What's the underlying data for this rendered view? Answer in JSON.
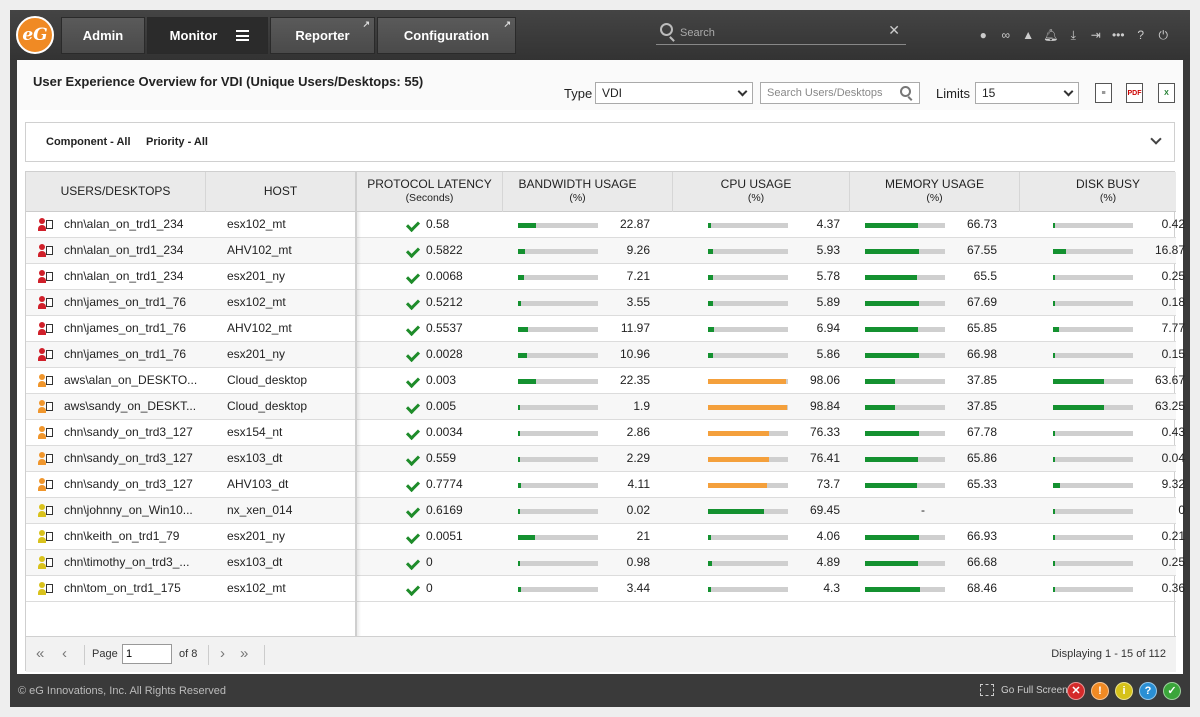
{
  "brand": {
    "logo_text": "eG",
    "accent": "#f08a24"
  },
  "nav": {
    "tabs": [
      {
        "label": "Admin",
        "external": false
      },
      {
        "label": "Monitor",
        "external": false
      },
      {
        "label": "Reporter",
        "external": true
      },
      {
        "label": "Configuration",
        "external": true
      }
    ],
    "search_placeholder": "Search",
    "icons": [
      "user-icon",
      "link-icon",
      "alert-icon",
      "bell-icon",
      "download-icon",
      "sign-in-icon",
      "more-icon",
      "help-icon",
      "power-icon"
    ]
  },
  "header": {
    "title": "User Experience Overview for VDI (Unique Users/Desktops: 55)",
    "type_label": "Type",
    "type_value": "VDI",
    "search_placeholder": "Search Users/Desktops",
    "limits_label": "Limits",
    "limits_value": "15"
  },
  "filters": {
    "component": "Component - All",
    "priority": "Priority - All"
  },
  "table": {
    "columns": [
      {
        "title": "USERS/DESKTOPS",
        "unit": ""
      },
      {
        "title": "HOST",
        "unit": ""
      },
      {
        "title": "PROTOCOL LATENCY",
        "unit": "(Seconds)"
      },
      {
        "title": "BANDWIDTH USAGE",
        "unit": "(%)"
      },
      {
        "title": "CPU USAGE",
        "unit": "(%)"
      },
      {
        "title": "MEMORY USAGE",
        "unit": "(%)"
      },
      {
        "title": "DISK BUSY",
        "unit": "(%)"
      }
    ],
    "rows": [
      {
        "user": "chn\\alan_on_trd1_234",
        "icon": "red",
        "host": "esx102_mt",
        "latency": "0.58",
        "bw": "22.87",
        "cpu": "4.37",
        "mem": "66.73",
        "disk": "0.42"
      },
      {
        "user": "chn\\alan_on_trd1_234",
        "icon": "red",
        "host": "AHV102_mt",
        "latency": "0.5822",
        "bw": "9.26",
        "cpu": "5.93",
        "mem": "67.55",
        "disk": "16.87"
      },
      {
        "user": "chn\\alan_on_trd1_234",
        "icon": "red",
        "host": "esx201_ny",
        "latency": "0.0068",
        "bw": "7.21",
        "cpu": "5.78",
        "mem": "65.5",
        "disk": "0.25"
      },
      {
        "user": "chn\\james_on_trd1_76",
        "icon": "red",
        "host": "esx102_mt",
        "latency": "0.5212",
        "bw": "3.55",
        "cpu": "5.89",
        "mem": "67.69",
        "disk": "0.18"
      },
      {
        "user": "chn\\james_on_trd1_76",
        "icon": "red",
        "host": "AHV102_mt",
        "latency": "0.5537",
        "bw": "11.97",
        "cpu": "6.94",
        "mem": "65.85",
        "disk": "7.77"
      },
      {
        "user": "chn\\james_on_trd1_76",
        "icon": "red",
        "host": "esx201_ny",
        "latency": "0.0028",
        "bw": "10.96",
        "cpu": "5.86",
        "mem": "66.98",
        "disk": "0.15"
      },
      {
        "user": "aws\\alan_on_DESKTO...",
        "icon": "orange",
        "host": "Cloud_desktop",
        "latency": "0.003",
        "bw": "22.35",
        "cpu": "98.06",
        "mem": "37.85",
        "disk": "63.67"
      },
      {
        "user": "aws\\sandy_on_DESKT...",
        "icon": "orange",
        "host": "Cloud_desktop",
        "latency": "0.005",
        "bw": "1.9",
        "cpu": "98.84",
        "mem": "37.85",
        "disk": "63.25"
      },
      {
        "user": "chn\\sandy_on_trd3_127",
        "icon": "orange",
        "host": "esx154_nt",
        "latency": "0.0034",
        "bw": "2.86",
        "cpu": "76.33",
        "mem": "67.78",
        "disk": "0.43"
      },
      {
        "user": "chn\\sandy_on_trd3_127",
        "icon": "orange",
        "host": "esx103_dt",
        "latency": "0.559",
        "bw": "2.29",
        "cpu": "76.41",
        "mem": "65.86",
        "disk": "0.04"
      },
      {
        "user": "chn\\sandy_on_trd3_127",
        "icon": "orange",
        "host": "AHV103_dt",
        "latency": "0.7774",
        "bw": "4.11",
        "cpu": "73.7",
        "mem": "65.33",
        "disk": "9.32"
      },
      {
        "user": "chn\\johnny_on_Win10...",
        "icon": "yellow",
        "host": "nx_xen_014",
        "latency": "0.6169",
        "bw": "0.02",
        "cpu": "69.45",
        "mem": "-",
        "disk": "0"
      },
      {
        "user": "chn\\keith_on_trd1_79",
        "icon": "yellow",
        "host": "esx201_ny",
        "latency": "0.0051",
        "bw": "21",
        "cpu": "4.06",
        "mem": "66.93",
        "disk": "0.21"
      },
      {
        "user": "chn\\timothy_on_trd3_...",
        "icon": "yellow",
        "host": "esx103_dt",
        "latency": "0",
        "bw": "0.98",
        "cpu": "4.89",
        "mem": "66.68",
        "disk": "0.25"
      },
      {
        "user": "chn\\tom_on_trd1_175",
        "icon": "yellow",
        "host": "esx102_mt",
        "latency": "0",
        "bw": "3.44",
        "cpu": "4.3",
        "mem": "68.46",
        "disk": "0.36"
      }
    ]
  },
  "pager": {
    "page_label": "Page",
    "page_value": "1",
    "of_label": "of 8",
    "display": "Displaying 1 - 15 of 112"
  },
  "footer": {
    "copyright": "© eG Innovations, Inc. All Rights Reserved",
    "fullscreen_label": "Go Full Screen"
  },
  "colors": {
    "bar_green": "#149130",
    "bar_orange": "#f4a03c",
    "icon_red": "#d0202a",
    "icon_orange": "#f0962c",
    "icon_yellow": "#d9c21c"
  }
}
